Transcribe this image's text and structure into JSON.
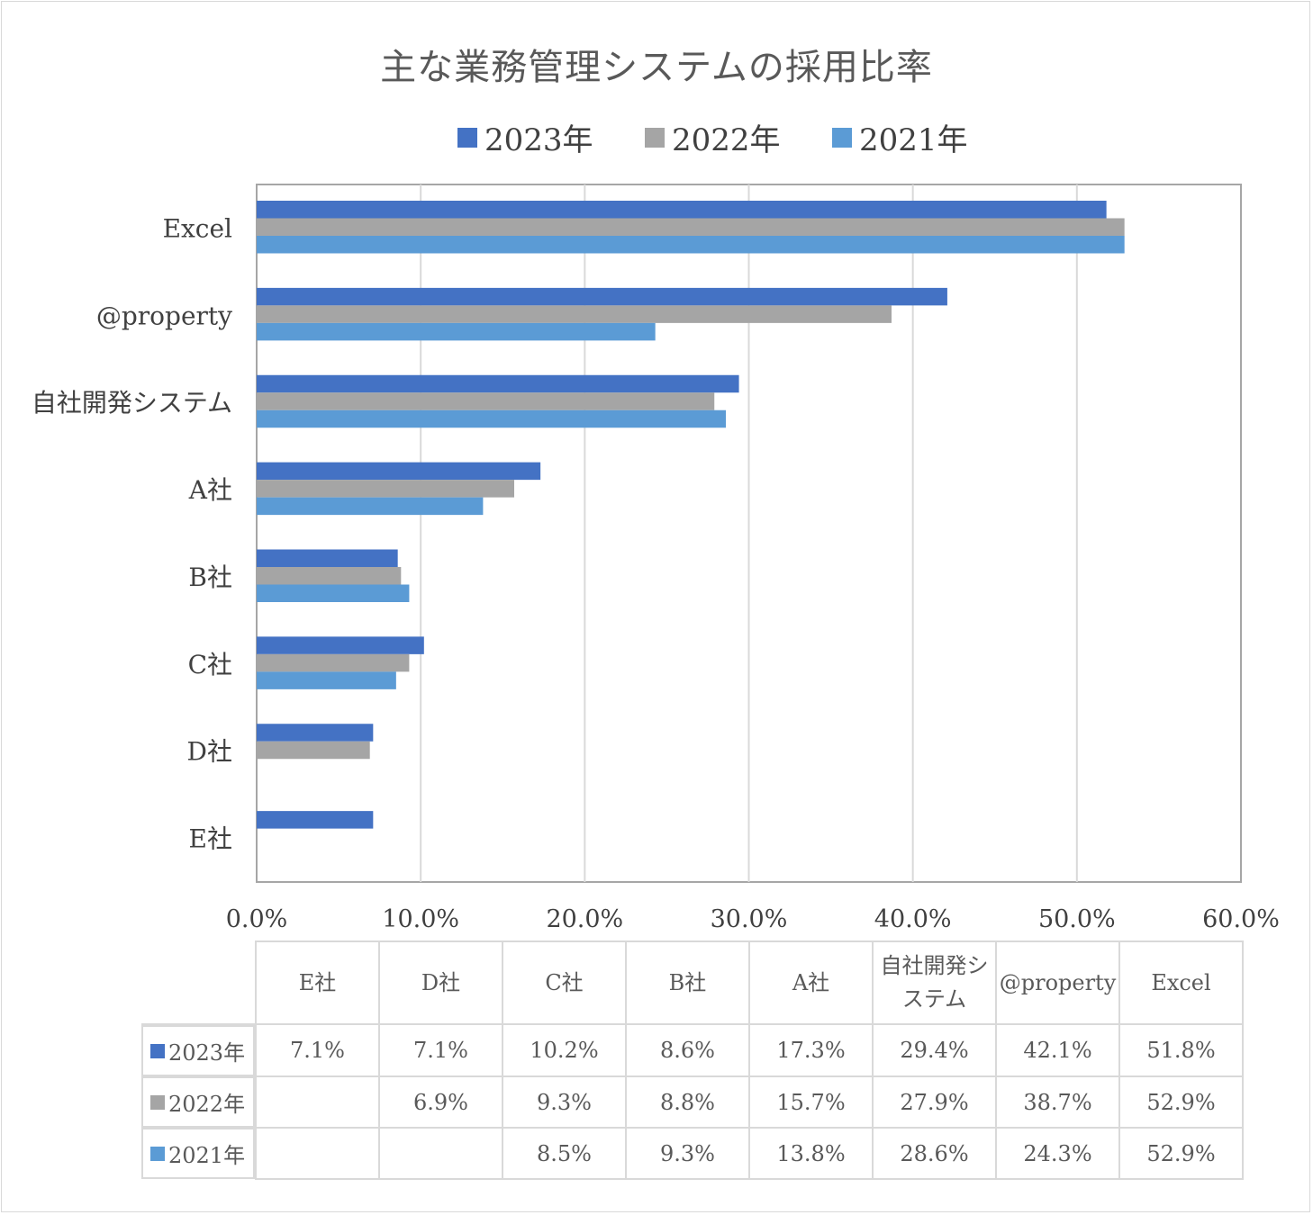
{
  "colors": {
    "s2023": "#4472c4",
    "s2022": "#a5a5a5",
    "s2021": "#5b9bd5",
    "grid": "#d9d9d9",
    "axis": "#bfbfbf"
  },
  "chart_data": {
    "type": "bar",
    "orientation": "horizontal",
    "title": "主な業務管理システムの採用比率",
    "xlabel": "",
    "ylabel": "",
    "xlim": [
      0,
      60
    ],
    "x_ticks": [
      "0.0%",
      "10.0%",
      "20.0%",
      "30.0%",
      "40.0%",
      "50.0%",
      "60.0%"
    ],
    "x_tick_values": [
      0,
      10,
      20,
      30,
      40,
      50,
      60
    ],
    "legend_position": "top",
    "grid": true,
    "categories": [
      "Excel",
      "@property",
      "自社開発システム",
      "A社",
      "B社",
      "C社",
      "D社",
      "E社"
    ],
    "series": [
      {
        "name": "2023年",
        "color": "#4472c4",
        "values": [
          51.8,
          42.1,
          29.4,
          17.3,
          8.6,
          10.2,
          7.1,
          7.1
        ]
      },
      {
        "name": "2022年",
        "color": "#a5a5a5",
        "values": [
          52.9,
          38.7,
          27.9,
          15.7,
          8.8,
          9.3,
          6.9,
          null
        ]
      },
      {
        "name": "2021年",
        "color": "#5b9bd5",
        "values": [
          52.9,
          24.3,
          28.6,
          13.8,
          9.3,
          8.5,
          null,
          null
        ]
      }
    ]
  },
  "table": {
    "headers": [
      "E社",
      "D社",
      "C社",
      "B社",
      "A社",
      "自社開発システム",
      "@property",
      "Excel"
    ],
    "header_display": [
      "E社",
      "D社",
      "C社",
      "B社",
      "A社",
      "自社開発シ\nステム",
      "@property",
      "Excel"
    ],
    "rows": [
      {
        "label": "2023年",
        "color": "#4472c4",
        "cells": [
          "7.1%",
          "7.1%",
          "10.2%",
          "8.6%",
          "17.3%",
          "29.4%",
          "42.1%",
          "51.8%"
        ]
      },
      {
        "label": "2022年",
        "color": "#a5a5a5",
        "cells": [
          "",
          "6.9%",
          "9.3%",
          "8.8%",
          "15.7%",
          "27.9%",
          "38.7%",
          "52.9%"
        ]
      },
      {
        "label": "2021年",
        "color": "#5b9bd5",
        "cells": [
          "",
          "",
          "8.5%",
          "9.3%",
          "13.8%",
          "28.6%",
          "24.3%",
          "52.9%"
        ]
      }
    ]
  }
}
